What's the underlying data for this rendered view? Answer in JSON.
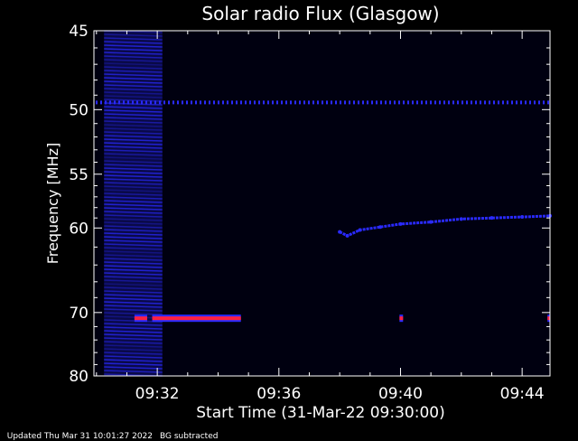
{
  "chart_data": {
    "type": "heatmap",
    "title": "Solar radio Flux (Glasgow)",
    "xlabel": "Start Time (31-Mar-22 09:30:00)",
    "ylabel": "Frequency [MHz]",
    "xlim": [
      "09:29:55",
      "09:44:55"
    ],
    "ylim": [
      45,
      80
    ],
    "y_scale": "reciprocal",
    "xticks": [
      "09:32",
      "09:36",
      "09:40",
      "09:44"
    ],
    "yticks": [
      45,
      50,
      55,
      60,
      70,
      80
    ],
    "colors": {
      "background": "#000010",
      "signal": "#2a2aff",
      "strong": "#ff2040",
      "text": "#ffffff"
    },
    "features": {
      "broadband_interference": {
        "start": "09:30:15",
        "end": "09:32:10",
        "freq_range": [
          45,
          80
        ]
      },
      "constant_carrier_mhz": 49.5,
      "drifting_emission": {
        "points": [
          {
            "t": "09:38:00",
            "f": 60.4
          },
          {
            "t": "09:38:15",
            "f": 60.8
          },
          {
            "t": "09:38:40",
            "f": 60.2
          },
          {
            "t": "09:39:20",
            "f": 59.9
          },
          {
            "t": "09:40:00",
            "f": 59.6
          },
          {
            "t": "09:41:00",
            "f": 59.4
          },
          {
            "t": "09:42:00",
            "f": 59.1
          },
          {
            "t": "09:43:00",
            "f": 59.0
          },
          {
            "t": "09:44:00",
            "f": 58.9
          },
          {
            "t": "09:44:55",
            "f": 58.8
          }
        ]
      },
      "strong_bands": [
        {
          "start": "09:31:15",
          "end": "09:31:40",
          "f": 70.8
        },
        {
          "start": "09:31:50",
          "end": "09:34:45",
          "f": 70.8
        },
        {
          "start": "09:39:58",
          "end": "09:40:05",
          "f": 70.8
        },
        {
          "start": "09:44:50",
          "end": "09:44:55",
          "f": 70.8
        }
      ]
    }
  },
  "footer": {
    "updated": "Updated Thu Mar 31 10:01:27 2022",
    "note": "BG subtracted"
  }
}
